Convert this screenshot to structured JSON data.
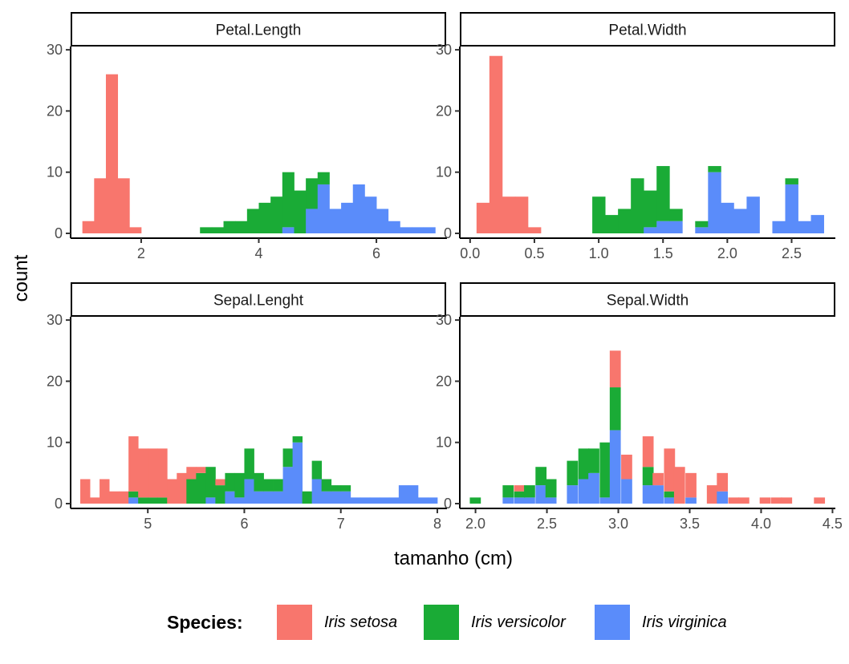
{
  "chart_data": {
    "type": "bar",
    "stacked": true,
    "xlabel": "tamanho (cm)",
    "ylabel": "count",
    "ylim": [
      0,
      30
    ],
    "y_ticks": [
      0,
      10,
      20,
      30
    ],
    "grid": false,
    "legend": {
      "title": "Species:",
      "position": "bottom",
      "entries": [
        {
          "label": "Iris setosa",
          "color": "#F8766D"
        },
        {
          "label": "Iris versicolor",
          "color": "#1AAB36"
        },
        {
          "label": "Iris virginica",
          "color": "#5A8CFA"
        }
      ]
    },
    "panels": [
      {
        "title": "Petal.Length",
        "x_ticks": [
          2,
          4,
          6
        ],
        "x_tick_labels": [
          "2",
          "4",
          "6"
        ],
        "bin_width": 0.2,
        "bins": [
          {
            "x0": 1.0,
            "setosa": 2,
            "versicolor": 0,
            "virginica": 0
          },
          {
            "x0": 1.2,
            "setosa": 9,
            "versicolor": 0,
            "virginica": 0
          },
          {
            "x0": 1.4,
            "setosa": 26,
            "versicolor": 0,
            "virginica": 0
          },
          {
            "x0": 1.6,
            "setosa": 9,
            "versicolor": 0,
            "virginica": 0
          },
          {
            "x0": 1.8,
            "setosa": 1,
            "versicolor": 0,
            "virginica": 0
          },
          {
            "x0": 3.0,
            "setosa": 0,
            "versicolor": 1,
            "virginica": 0
          },
          {
            "x0": 3.2,
            "setosa": 0,
            "versicolor": 1,
            "virginica": 0
          },
          {
            "x0": 3.4,
            "setosa": 0,
            "versicolor": 2,
            "virginica": 0
          },
          {
            "x0": 3.6,
            "setosa": 0,
            "versicolor": 2,
            "virginica": 0
          },
          {
            "x0": 3.8,
            "setosa": 0,
            "versicolor": 4,
            "virginica": 0
          },
          {
            "x0": 4.0,
            "setosa": 0,
            "versicolor": 5,
            "virginica": 0
          },
          {
            "x0": 4.2,
            "setosa": 0,
            "versicolor": 6,
            "virginica": 0
          },
          {
            "x0": 4.4,
            "setosa": 0,
            "versicolor": 9,
            "virginica": 1
          },
          {
            "x0": 4.6,
            "setosa": 0,
            "versicolor": 7,
            "virginica": 0
          },
          {
            "x0": 4.8,
            "setosa": 0,
            "versicolor": 5,
            "virginica": 4
          },
          {
            "x0": 5.0,
            "setosa": 0,
            "versicolor": 2,
            "virginica": 8
          },
          {
            "x0": 5.2,
            "setosa": 0,
            "versicolor": 0,
            "virginica": 4
          },
          {
            "x0": 5.4,
            "setosa": 0,
            "versicolor": 0,
            "virginica": 5
          },
          {
            "x0": 5.6,
            "setosa": 0,
            "versicolor": 0,
            "virginica": 8
          },
          {
            "x0": 5.8,
            "setosa": 0,
            "versicolor": 0,
            "virginica": 6
          },
          {
            "x0": 6.0,
            "setosa": 0,
            "versicolor": 0,
            "virginica": 4
          },
          {
            "x0": 6.2,
            "setosa": 0,
            "versicolor": 0,
            "virginica": 2
          },
          {
            "x0": 6.4,
            "setosa": 0,
            "versicolor": 0,
            "virginica": 1
          },
          {
            "x0": 6.6,
            "setosa": 0,
            "versicolor": 0,
            "virginica": 1
          },
          {
            "x0": 6.8,
            "setosa": 0,
            "versicolor": 0,
            "virginica": 1
          }
        ]
      },
      {
        "title": "Petal.Width",
        "x_ticks": [
          0.0,
          0.5,
          1.0,
          1.5,
          2.0,
          2.5
        ],
        "x_tick_labels": [
          "0.0",
          "0.5",
          "1.0",
          "1.5",
          "2.0",
          "2.5"
        ],
        "bin_width": 0.1,
        "bins": [
          {
            "x0": 0.05,
            "setosa": 5,
            "versicolor": 0,
            "virginica": 0
          },
          {
            "x0": 0.15,
            "setosa": 29,
            "versicolor": 0,
            "virginica": 0
          },
          {
            "x0": 0.25,
            "setosa": 6,
            "versicolor": 0,
            "virginica": 0
          },
          {
            "x0": 0.35,
            "setosa": 6,
            "versicolor": 0,
            "virginica": 0
          },
          {
            "x0": 0.45,
            "setosa": 1,
            "versicolor": 0,
            "virginica": 0
          },
          {
            "x0": 0.95,
            "setosa": 0,
            "versicolor": 6,
            "virginica": 0
          },
          {
            "x0": 1.05,
            "setosa": 0,
            "versicolor": 3,
            "virginica": 0
          },
          {
            "x0": 1.15,
            "setosa": 0,
            "versicolor": 4,
            "virginica": 0
          },
          {
            "x0": 1.25,
            "setosa": 0,
            "versicolor": 9,
            "virginica": 0
          },
          {
            "x0": 1.35,
            "setosa": 0,
            "versicolor": 6,
            "virginica": 1
          },
          {
            "x0": 1.45,
            "setosa": 0,
            "versicolor": 9,
            "virginica": 2
          },
          {
            "x0": 1.55,
            "setosa": 0,
            "versicolor": 2,
            "virginica": 2
          },
          {
            "x0": 1.75,
            "setosa": 0,
            "versicolor": 1,
            "virginica": 1
          },
          {
            "x0": 1.85,
            "setosa": 0,
            "versicolor": 1,
            "virginica": 10
          },
          {
            "x0": 1.95,
            "setosa": 0,
            "versicolor": 0,
            "virginica": 5
          },
          {
            "x0": 2.05,
            "setosa": 0,
            "versicolor": 0,
            "virginica": 4
          },
          {
            "x0": 2.15,
            "setosa": 0,
            "versicolor": 0,
            "virginica": 6
          },
          {
            "x0": 2.35,
            "setosa": 0,
            "versicolor": 0,
            "virginica": 2
          },
          {
            "x0": 2.45,
            "setosa": 0,
            "versicolor": 1,
            "virginica": 8
          },
          {
            "x0": 2.55,
            "setosa": 0,
            "versicolor": 0,
            "virginica": 2
          },
          {
            "x0": 2.65,
            "setosa": 0,
            "versicolor": 0,
            "virginica": 3
          }
        ]
      },
      {
        "title": "Sepal.Lenght",
        "x_ticks": [
          5,
          6,
          7,
          8
        ],
        "x_tick_labels": [
          "5",
          "6",
          "7",
          "8"
        ],
        "bin_width": 0.1,
        "bins": [
          {
            "x0": 4.3,
            "setosa": 4,
            "versicolor": 0,
            "virginica": 0
          },
          {
            "x0": 4.4,
            "setosa": 1,
            "versicolor": 0,
            "virginica": 0
          },
          {
            "x0": 4.5,
            "setosa": 4,
            "versicolor": 0,
            "virginica": 0
          },
          {
            "x0": 4.6,
            "setosa": 2,
            "versicolor": 0,
            "virginica": 0
          },
          {
            "x0": 4.7,
            "setosa": 2,
            "versicolor": 0,
            "virginica": 0
          },
          {
            "x0": 4.8,
            "setosa": 9,
            "versicolor": 1,
            "virginica": 1
          },
          {
            "x0": 4.9,
            "setosa": 8,
            "versicolor": 1,
            "virginica": 0
          },
          {
            "x0": 5.0,
            "setosa": 8,
            "versicolor": 1,
            "virginica": 0
          },
          {
            "x0": 5.1,
            "setosa": 8,
            "versicolor": 1,
            "virginica": 0
          },
          {
            "x0": 5.2,
            "setosa": 4,
            "versicolor": 0,
            "virginica": 0
          },
          {
            "x0": 5.3,
            "setosa": 5,
            "versicolor": 0,
            "virginica": 0
          },
          {
            "x0": 5.4,
            "setosa": 2,
            "versicolor": 4,
            "virginica": 0
          },
          {
            "x0": 5.5,
            "setosa": 1,
            "versicolor": 5,
            "virginica": 0
          },
          {
            "x0": 5.6,
            "setosa": 0,
            "versicolor": 5,
            "virginica": 1
          },
          {
            "x0": 5.7,
            "setosa": 1,
            "versicolor": 3,
            "virginica": 0
          },
          {
            "x0": 5.8,
            "setosa": 0,
            "versicolor": 3,
            "virginica": 2
          },
          {
            "x0": 5.9,
            "setosa": 0,
            "versicolor": 4,
            "virginica": 1
          },
          {
            "x0": 6.0,
            "setosa": 0,
            "versicolor": 5,
            "virginica": 4
          },
          {
            "x0": 6.1,
            "setosa": 0,
            "versicolor": 3,
            "virginica": 2
          },
          {
            "x0": 6.2,
            "setosa": 0,
            "versicolor": 2,
            "virginica": 2
          },
          {
            "x0": 6.3,
            "setosa": 0,
            "versicolor": 2,
            "virginica": 2
          },
          {
            "x0": 6.4,
            "setosa": 0,
            "versicolor": 3,
            "virginica": 6
          },
          {
            "x0": 6.5,
            "setosa": 0,
            "versicolor": 1,
            "virginica": 10
          },
          {
            "x0": 6.6,
            "setosa": 0,
            "versicolor": 2,
            "virginica": 0
          },
          {
            "x0": 6.7,
            "setosa": 0,
            "versicolor": 3,
            "virginica": 4
          },
          {
            "x0": 6.8,
            "setosa": 0,
            "versicolor": 2,
            "virginica": 2
          },
          {
            "x0": 6.9,
            "setosa": 0,
            "versicolor": 1,
            "virginica": 2
          },
          {
            "x0": 7.0,
            "setosa": 0,
            "versicolor": 1,
            "virginica": 2
          },
          {
            "x0": 7.1,
            "setosa": 0,
            "versicolor": 0,
            "virginica": 1
          },
          {
            "x0": 7.2,
            "setosa": 0,
            "versicolor": 0,
            "virginica": 1
          },
          {
            "x0": 7.3,
            "setosa": 0,
            "versicolor": 0,
            "virginica": 1
          },
          {
            "x0": 7.4,
            "setosa": 0,
            "versicolor": 0,
            "virginica": 1
          },
          {
            "x0": 7.5,
            "setosa": 0,
            "versicolor": 0,
            "virginica": 1
          },
          {
            "x0": 7.6,
            "setosa": 0,
            "versicolor": 0,
            "virginica": 3
          },
          {
            "x0": 7.7,
            "setosa": 0,
            "versicolor": 0,
            "virginica": 3
          },
          {
            "x0": 7.8,
            "setosa": 0,
            "versicolor": 0,
            "virginica": 1
          },
          {
            "x0": 7.9,
            "setosa": 0,
            "versicolor": 0,
            "virginica": 1
          }
        ]
      },
      {
        "title": "Sepal.Width",
        "x_ticks": [
          2.0,
          2.5,
          3.0,
          3.5,
          4.0,
          4.5
        ],
        "x_tick_labels": [
          "2.0",
          "2.5",
          "3.0",
          "3.5",
          "4.0",
          "4.5"
        ],
        "bin_width": 0.075,
        "bins": [
          {
            "x0": 1.96,
            "setosa": 0,
            "versicolor": 1,
            "virginica": 0
          },
          {
            "x0": 2.19,
            "setosa": 0,
            "versicolor": 2,
            "virginica": 1
          },
          {
            "x0": 2.27,
            "setosa": 1,
            "versicolor": 1,
            "virginica": 1
          },
          {
            "x0": 2.34,
            "setosa": 0,
            "versicolor": 2,
            "virginica": 1
          },
          {
            "x0": 2.42,
            "setosa": 0,
            "versicolor": 3,
            "virginica": 3
          },
          {
            "x0": 2.49,
            "setosa": 0,
            "versicolor": 3,
            "virginica": 1
          },
          {
            "x0": 2.64,
            "setosa": 0,
            "versicolor": 4,
            "virginica": 3
          },
          {
            "x0": 2.72,
            "setosa": 0,
            "versicolor": 5,
            "virginica": 4
          },
          {
            "x0": 2.79,
            "setosa": 0,
            "versicolor": 4,
            "virginica": 5
          },
          {
            "x0": 2.87,
            "setosa": 0,
            "versicolor": 9,
            "virginica": 1
          },
          {
            "x0": 2.94,
            "setosa": 6,
            "versicolor": 7,
            "virginica": 12
          },
          {
            "x0": 3.02,
            "setosa": 4,
            "versicolor": 0,
            "virginica": 4
          },
          {
            "x0": 3.17,
            "setosa": 5,
            "versicolor": 3,
            "virginica": 3
          },
          {
            "x0": 3.24,
            "setosa": 2,
            "versicolor": 0,
            "virginica": 3
          },
          {
            "x0": 3.32,
            "setosa": 7,
            "versicolor": 1,
            "virginica": 1
          },
          {
            "x0": 3.39,
            "setosa": 6,
            "versicolor": 0,
            "virginica": 0
          },
          {
            "x0": 3.47,
            "setosa": 4,
            "versicolor": 0,
            "virginica": 1
          },
          {
            "x0": 3.62,
            "setosa": 3,
            "versicolor": 0,
            "virginica": 0
          },
          {
            "x0": 3.69,
            "setosa": 3,
            "versicolor": 0,
            "virginica": 2
          },
          {
            "x0": 3.77,
            "setosa": 1,
            "versicolor": 0,
            "virginica": 0
          },
          {
            "x0": 3.84,
            "setosa": 1,
            "versicolor": 0,
            "virginica": 0
          },
          {
            "x0": 3.99,
            "setosa": 1,
            "versicolor": 0,
            "virginica": 0
          },
          {
            "x0": 4.07,
            "setosa": 1,
            "versicolor": 0,
            "virginica": 0
          },
          {
            "x0": 4.14,
            "setosa": 1,
            "versicolor": 0,
            "virginica": 0
          },
          {
            "x0": 4.37,
            "setosa": 1,
            "versicolor": 0,
            "virginica": 0
          }
        ]
      }
    ]
  }
}
